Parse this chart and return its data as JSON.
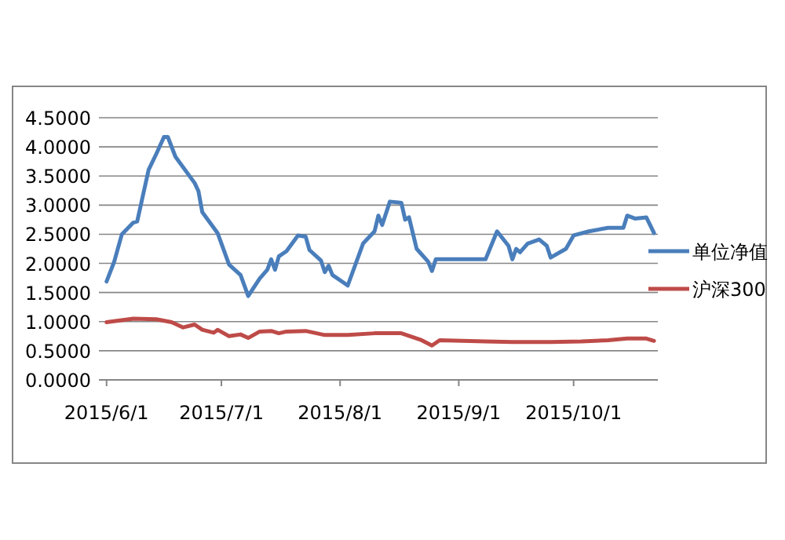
{
  "chart_data": {
    "type": "line",
    "xlim": [
      "2015-05-30",
      "2015-10-23"
    ],
    "xticks": [
      {
        "value": "2015-06-01",
        "label": "2015/6/1"
      },
      {
        "value": "2015-07-01",
        "label": "2015/7/1"
      },
      {
        "value": "2015-08-01",
        "label": "2015/8/1"
      },
      {
        "value": "2015-09-01",
        "label": "2015/9/1"
      },
      {
        "value": "2015-10-01",
        "label": "2015/10/1"
      }
    ],
    "ylim": [
      0,
      4.5
    ],
    "yticks": [
      {
        "value": 0,
        "label": "0.0000"
      },
      {
        "value": 0.5,
        "label": "0.5000"
      },
      {
        "value": 1,
        "label": "1.0000"
      },
      {
        "value": 1.5,
        "label": "1.5000"
      },
      {
        "value": 2,
        "label": "2.0000"
      },
      {
        "value": 2.5,
        "label": "2.5000"
      },
      {
        "value": 3,
        "label": "3.0000"
      },
      {
        "value": 3.5,
        "label": "3.5000"
      },
      {
        "value": 4,
        "label": "4.0000"
      },
      {
        "value": 4.5,
        "label": "4.5000"
      }
    ],
    "grid": "y",
    "legend": "right",
    "marker": "none",
    "line_style": "solid",
    "series": [
      {
        "name": "单位净值",
        "color": "#4a7ebb",
        "x": [
          "2015-06-01",
          "2015-06-03",
          "2015-06-05",
          "2015-06-08",
          "2015-06-09",
          "2015-06-12",
          "2015-06-14",
          "2015-06-16",
          "2015-06-17",
          "2015-06-19",
          "2015-06-24",
          "2015-06-25",
          "2015-06-26",
          "2015-06-29",
          "2015-06-30",
          "2015-07-03",
          "2015-07-06",
          "2015-07-08",
          "2015-07-11",
          "2015-07-13",
          "2015-07-14",
          "2015-07-15",
          "2015-07-16",
          "2015-07-18",
          "2015-07-21",
          "2015-07-23",
          "2015-07-24",
          "2015-07-27",
          "2015-07-28",
          "2015-07-29",
          "2015-07-30",
          "2015-08-03",
          "2015-08-07",
          "2015-08-10",
          "2015-08-11",
          "2015-08-12",
          "2015-08-14",
          "2015-08-17",
          "2015-08-18",
          "2015-08-19",
          "2015-08-21",
          "2015-08-24",
          "2015-08-25",
          "2015-08-26",
          "2015-09-08",
          "2015-09-11",
          "2015-09-14",
          "2015-09-15",
          "2015-09-16",
          "2015-09-17",
          "2015-09-19",
          "2015-09-22",
          "2015-09-24",
          "2015-09-25",
          "2015-09-29",
          "2015-10-01",
          "2015-10-05",
          "2015-10-10",
          "2015-10-14",
          "2015-10-15",
          "2015-10-17",
          "2015-10-20",
          "2015-10-22"
        ],
        "values": [
          1.69,
          2.03,
          2.5,
          2.7,
          2.72,
          3.61,
          3.88,
          4.17,
          4.17,
          3.83,
          3.38,
          3.24,
          2.88,
          2.61,
          2.52,
          1.98,
          1.8,
          1.44,
          1.74,
          1.89,
          2.07,
          1.89,
          2.12,
          2.21,
          2.48,
          2.46,
          2.23,
          2.05,
          1.85,
          1.96,
          1.8,
          1.62,
          2.34,
          2.55,
          2.82,
          2.66,
          3.06,
          3.04,
          2.75,
          2.79,
          2.25,
          2.03,
          1.87,
          2.07,
          2.07,
          2.55,
          2.3,
          2.07,
          2.25,
          2.19,
          2.34,
          2.41,
          2.3,
          2.1,
          2.25,
          2.48,
          2.55,
          2.61,
          2.61,
          2.82,
          2.77,
          2.79,
          2.52
        ]
      },
      {
        "name": "沪深300",
        "color": "#be4b48",
        "x": [
          "2015-06-01",
          "2015-06-08",
          "2015-06-14",
          "2015-06-18",
          "2015-06-21",
          "2015-06-24",
          "2015-06-26",
          "2015-06-29",
          "2015-06-30",
          "2015-07-03",
          "2015-07-06",
          "2015-07-08",
          "2015-07-11",
          "2015-07-14",
          "2015-07-16",
          "2015-07-18",
          "2015-07-23",
          "2015-07-28",
          "2015-08-03",
          "2015-08-10",
          "2015-08-17",
          "2015-08-22",
          "2015-08-25",
          "2015-08-27",
          "2015-09-08",
          "2015-09-15",
          "2015-09-25",
          "2015-10-03",
          "2015-10-10",
          "2015-10-15",
          "2015-10-20",
          "2015-10-22"
        ],
        "values": [
          0.99,
          1.05,
          1.04,
          0.99,
          0.9,
          0.95,
          0.86,
          0.81,
          0.86,
          0.75,
          0.78,
          0.72,
          0.83,
          0.84,
          0.8,
          0.83,
          0.84,
          0.77,
          0.77,
          0.8,
          0.8,
          0.69,
          0.59,
          0.68,
          0.66,
          0.65,
          0.65,
          0.66,
          0.68,
          0.71,
          0.71,
          0.67
        ]
      }
    ]
  }
}
